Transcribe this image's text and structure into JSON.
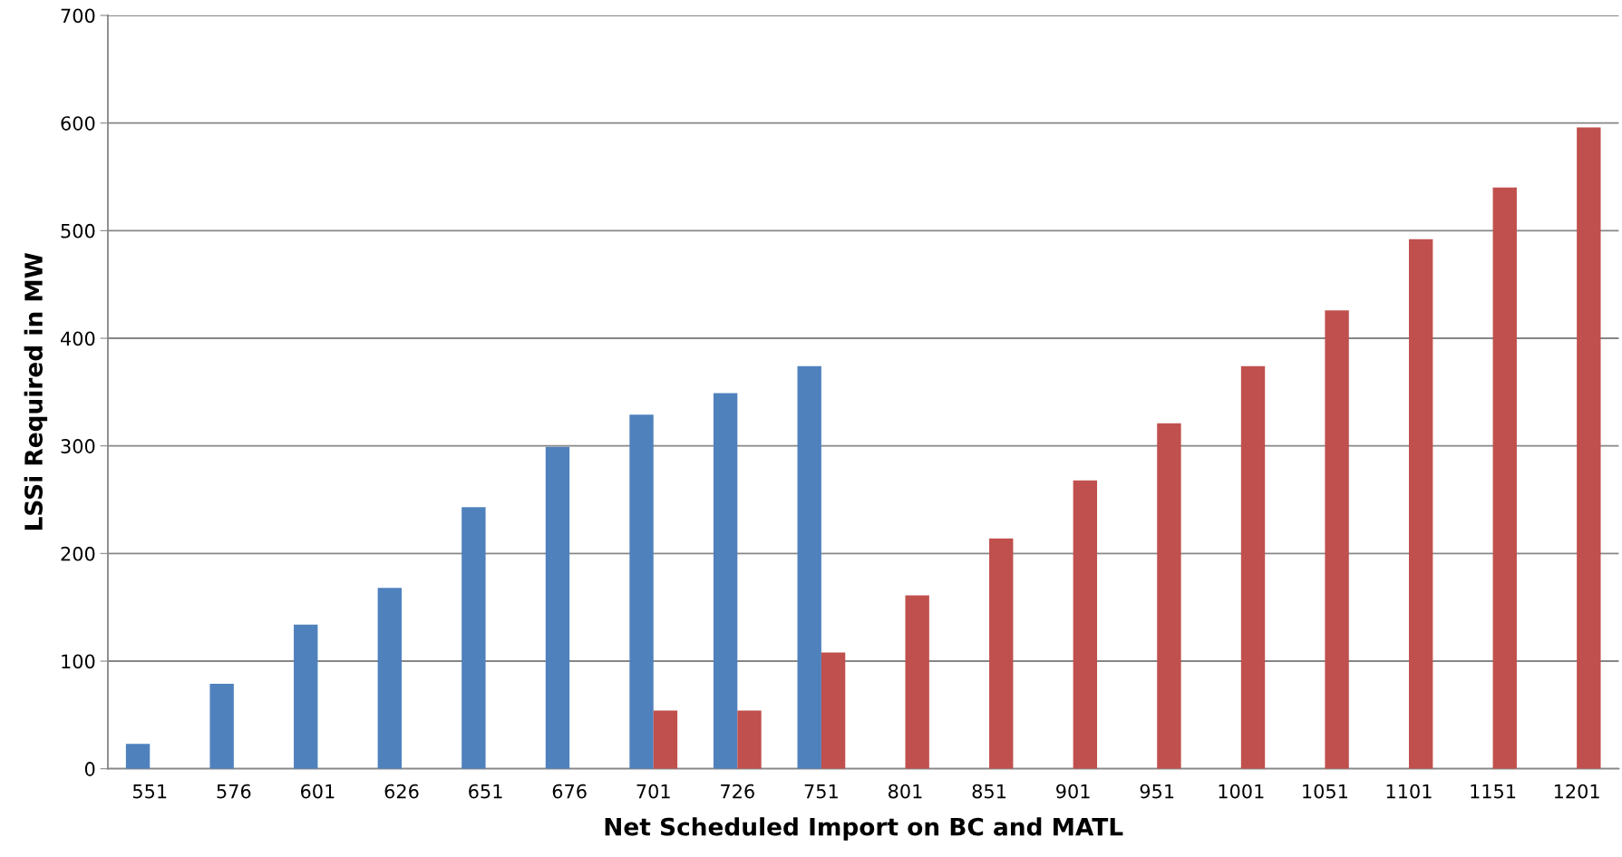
{
  "chart_data": {
    "type": "bar",
    "xlabel": "Net Scheduled Import on BC and MATL",
    "ylabel": "LSSi Required in MW",
    "categories": [
      "551",
      "576",
      "601",
      "626",
      "651",
      "676",
      "701",
      "726",
      "751",
      "801",
      "851",
      "901",
      "951",
      "1001",
      "1051",
      "1101",
      "1151",
      "1201"
    ],
    "series": [
      {
        "color": "#4f81bd",
        "values": [
          23,
          79,
          134,
          168,
          243,
          299,
          329,
          349,
          374,
          null,
          null,
          null,
          null,
          null,
          null,
          null,
          null,
          null
        ]
      },
      {
        "color": "#c0504d",
        "values": [
          null,
          null,
          null,
          null,
          null,
          null,
          54,
          54,
          108,
          161,
          214,
          268,
          321,
          374,
          426,
          492,
          540,
          596
        ]
      }
    ],
    "ylim": [
      0,
      700
    ],
    "yticks": [
      0,
      100,
      200,
      300,
      400,
      500,
      600,
      700
    ],
    "grid": "y",
    "legend": false
  }
}
